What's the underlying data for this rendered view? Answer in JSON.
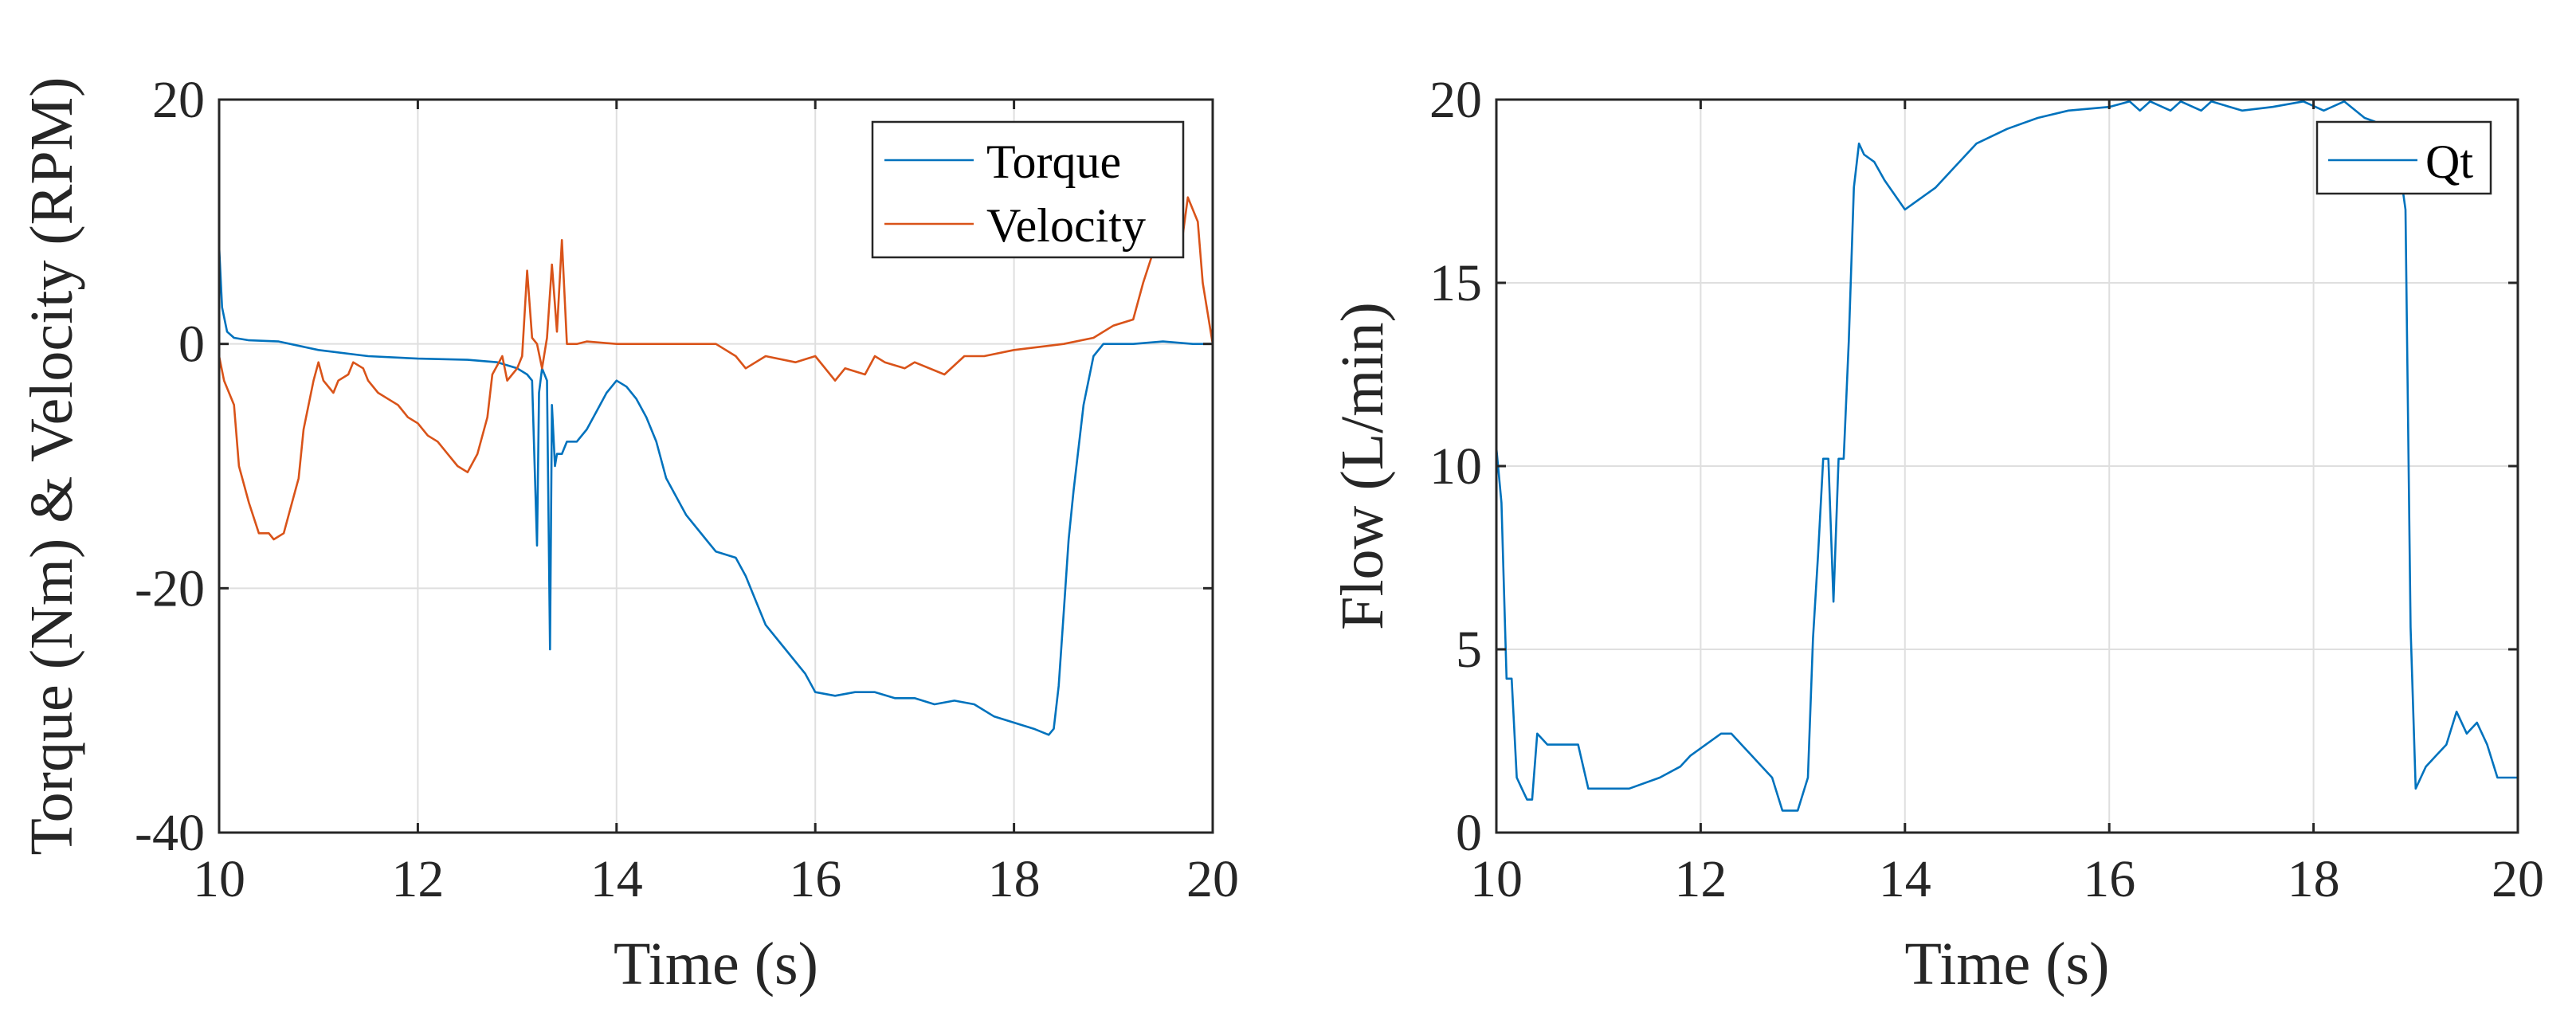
{
  "chart_data": [
    {
      "type": "line",
      "xlabel": "Time (s)",
      "ylabel": "Torque (Nm) & Velocity (RPM)",
      "xlim": [
        10,
        20
      ],
      "ylim": [
        -40,
        20
      ],
      "xticks": [
        "10",
        "12",
        "14",
        "16",
        "18",
        "20"
      ],
      "yticks": [
        "-40",
        "-20",
        "0",
        "20"
      ],
      "grid": true,
      "legend_position": "top-right",
      "series": [
        {
          "name": "Torque",
          "color": "#0072BD",
          "x": [
            10.0,
            10.03,
            10.08,
            10.15,
            10.3,
            10.6,
            11.0,
            11.5,
            12.0,
            12.5,
            12.8,
            13.0,
            13.1,
            13.15,
            13.2,
            13.22,
            13.25,
            13.3,
            13.33,
            13.35,
            13.38,
            13.4,
            13.45,
            13.5,
            13.6,
            13.7,
            13.8,
            13.9,
            14.0,
            14.1,
            14.2,
            14.3,
            14.4,
            14.5,
            14.7,
            14.9,
            15.0,
            15.2,
            15.3,
            15.4,
            15.5,
            15.7,
            15.9,
            16.0,
            16.2,
            16.4,
            16.6,
            16.8,
            17.0,
            17.2,
            17.4,
            17.6,
            17.8,
            18.0,
            18.2,
            18.35,
            18.4,
            18.45,
            18.5,
            18.55,
            18.6,
            18.7,
            18.8,
            18.9,
            19.0,
            19.2,
            19.5,
            19.8,
            20.0
          ],
          "y": [
            8,
            3,
            1,
            0.5,
            0.3,
            0.2,
            -0.5,
            -1,
            -1.2,
            -1.3,
            -1.5,
            -2,
            -2.5,
            -3,
            -16.5,
            -4,
            -2,
            -3,
            -25,
            -5,
            -10,
            -9,
            -9,
            -8,
            -8,
            -7,
            -5.5,
            -4,
            -3,
            -3.5,
            -4.5,
            -6,
            -8,
            -11,
            -14,
            -16,
            -17,
            -17.5,
            -19,
            -21,
            -23,
            -25,
            -27,
            -28.5,
            -28.8,
            -28.5,
            -28.5,
            -29,
            -29,
            -29.5,
            -29.2,
            -29.5,
            -30.5,
            -31,
            -31.5,
            -32,
            -31.5,
            -28,
            -22,
            -16,
            -12,
            -5,
            -1,
            0,
            0,
            0,
            0.2,
            0,
            0
          ]
        },
        {
          "name": "Velocity",
          "color": "#D95319",
          "x": [
            10.0,
            10.05,
            10.15,
            10.2,
            10.3,
            10.4,
            10.5,
            10.55,
            10.65,
            10.7,
            10.8,
            10.85,
            10.95,
            11.0,
            11.05,
            11.15,
            11.2,
            11.3,
            11.35,
            11.45,
            11.5,
            11.6,
            11.7,
            11.8,
            11.9,
            12.0,
            12.1,
            12.2,
            12.3,
            12.4,
            12.5,
            12.6,
            12.7,
            12.75,
            12.85,
            12.9,
            13.0,
            13.05,
            13.1,
            13.15,
            13.2,
            13.25,
            13.3,
            13.35,
            13.4,
            13.45,
            13.5,
            13.55,
            13.6,
            13.7,
            14.0,
            14.5,
            15.0,
            15.2,
            15.3,
            15.5,
            15.8,
            16.0,
            16.2,
            16.3,
            16.5,
            16.6,
            16.7,
            16.9,
            17.0,
            17.3,
            17.5,
            17.7,
            18.0,
            18.5,
            18.8,
            19.0,
            19.2,
            19.3,
            19.5,
            19.6,
            19.7,
            19.75,
            19.85,
            19.9,
            20.0
          ],
          "y": [
            -1,
            -3,
            -5,
            -10,
            -13,
            -15.5,
            -15.5,
            -16,
            -15.5,
            -14,
            -11,
            -7,
            -3,
            -1.5,
            -3,
            -4,
            -3,
            -2.5,
            -1.5,
            -2,
            -3,
            -4,
            -4.5,
            -5,
            -6,
            -6.5,
            -7.5,
            -8,
            -9,
            -10,
            -10.5,
            -9,
            -6,
            -2.5,
            -1,
            -3,
            -2,
            -1,
            6,
            0.5,
            0,
            -2,
            0.5,
            6.5,
            1,
            8.5,
            0,
            0,
            0,
            0.2,
            0,
            0,
            0,
            -1,
            -2,
            -1,
            -1.5,
            -1,
            -3,
            -2,
            -2.5,
            -1,
            -1.5,
            -2,
            -1.5,
            -2.5,
            -1,
            -1,
            -0.5,
            0,
            0.5,
            1.5,
            2,
            5,
            10,
            11,
            9,
            12,
            10,
            5,
            0
          ]
        }
      ]
    },
    {
      "type": "line",
      "xlabel": "Time (s)",
      "ylabel": "Flow (L/min)",
      "xlim": [
        10,
        20
      ],
      "ylim": [
        0,
        20
      ],
      "xticks": [
        "10",
        "12",
        "14",
        "16",
        "18",
        "20"
      ],
      "yticks": [
        "0",
        "5",
        "10",
        "15",
        "20"
      ],
      "grid": true,
      "legend_position": "top-right",
      "series": [
        {
          "name": "Qt",
          "color": "#0072BD",
          "x": [
            10.0,
            10.05,
            10.1,
            10.15,
            10.2,
            10.25,
            10.3,
            10.35,
            10.4,
            10.5,
            10.8,
            10.9,
            11.3,
            11.6,
            11.8,
            11.9,
            12.2,
            12.3,
            12.4,
            12.5,
            12.6,
            12.7,
            12.8,
            12.95,
            13.05,
            13.1,
            13.15,
            13.2,
            13.25,
            13.3,
            13.35,
            13.4,
            13.45,
            13.5,
            13.55,
            13.6,
            13.7,
            13.8,
            13.9,
            14.0,
            14.1,
            14.3,
            14.5,
            14.7,
            15.0,
            15.3,
            15.6,
            16.0,
            16.2,
            16.3,
            16.4,
            16.6,
            16.7,
            16.9,
            17.0,
            17.3,
            17.6,
            17.9,
            18.1,
            18.3,
            18.5,
            18.6,
            18.8,
            18.9,
            18.95,
            19.0,
            19.05,
            19.1,
            19.2,
            19.3,
            19.4,
            19.5,
            19.6,
            19.7,
            19.8,
            20.0
          ],
          "y": [
            10.5,
            9,
            4.2,
            4.2,
            1.5,
            1.2,
            0.9,
            0.9,
            2.7,
            2.4,
            2.4,
            1.2,
            1.2,
            1.5,
            1.8,
            2.1,
            2.7,
            2.7,
            2.4,
            2.1,
            1.8,
            1.5,
            0.6,
            0.6,
            1.5,
            5.3,
            7.6,
            10.2,
            10.2,
            6.3,
            10.2,
            10.2,
            13.4,
            17.6,
            18.8,
            18.5,
            18.3,
            17.8,
            17.4,
            17.0,
            17.2,
            17.6,
            18.2,
            18.8,
            19.2,
            19.5,
            19.7,
            19.8,
            19.95,
            19.7,
            19.95,
            19.7,
            19.95,
            19.7,
            19.95,
            19.7,
            19.8,
            19.95,
            19.7,
            19.95,
            19.5,
            19.4,
            19.0,
            17.0,
            5.6,
            1.2,
            1.5,
            1.8,
            2.1,
            2.4,
            3.3,
            2.7,
            3.0,
            2.4,
            1.5,
            1.5
          ]
        }
      ]
    }
  ]
}
